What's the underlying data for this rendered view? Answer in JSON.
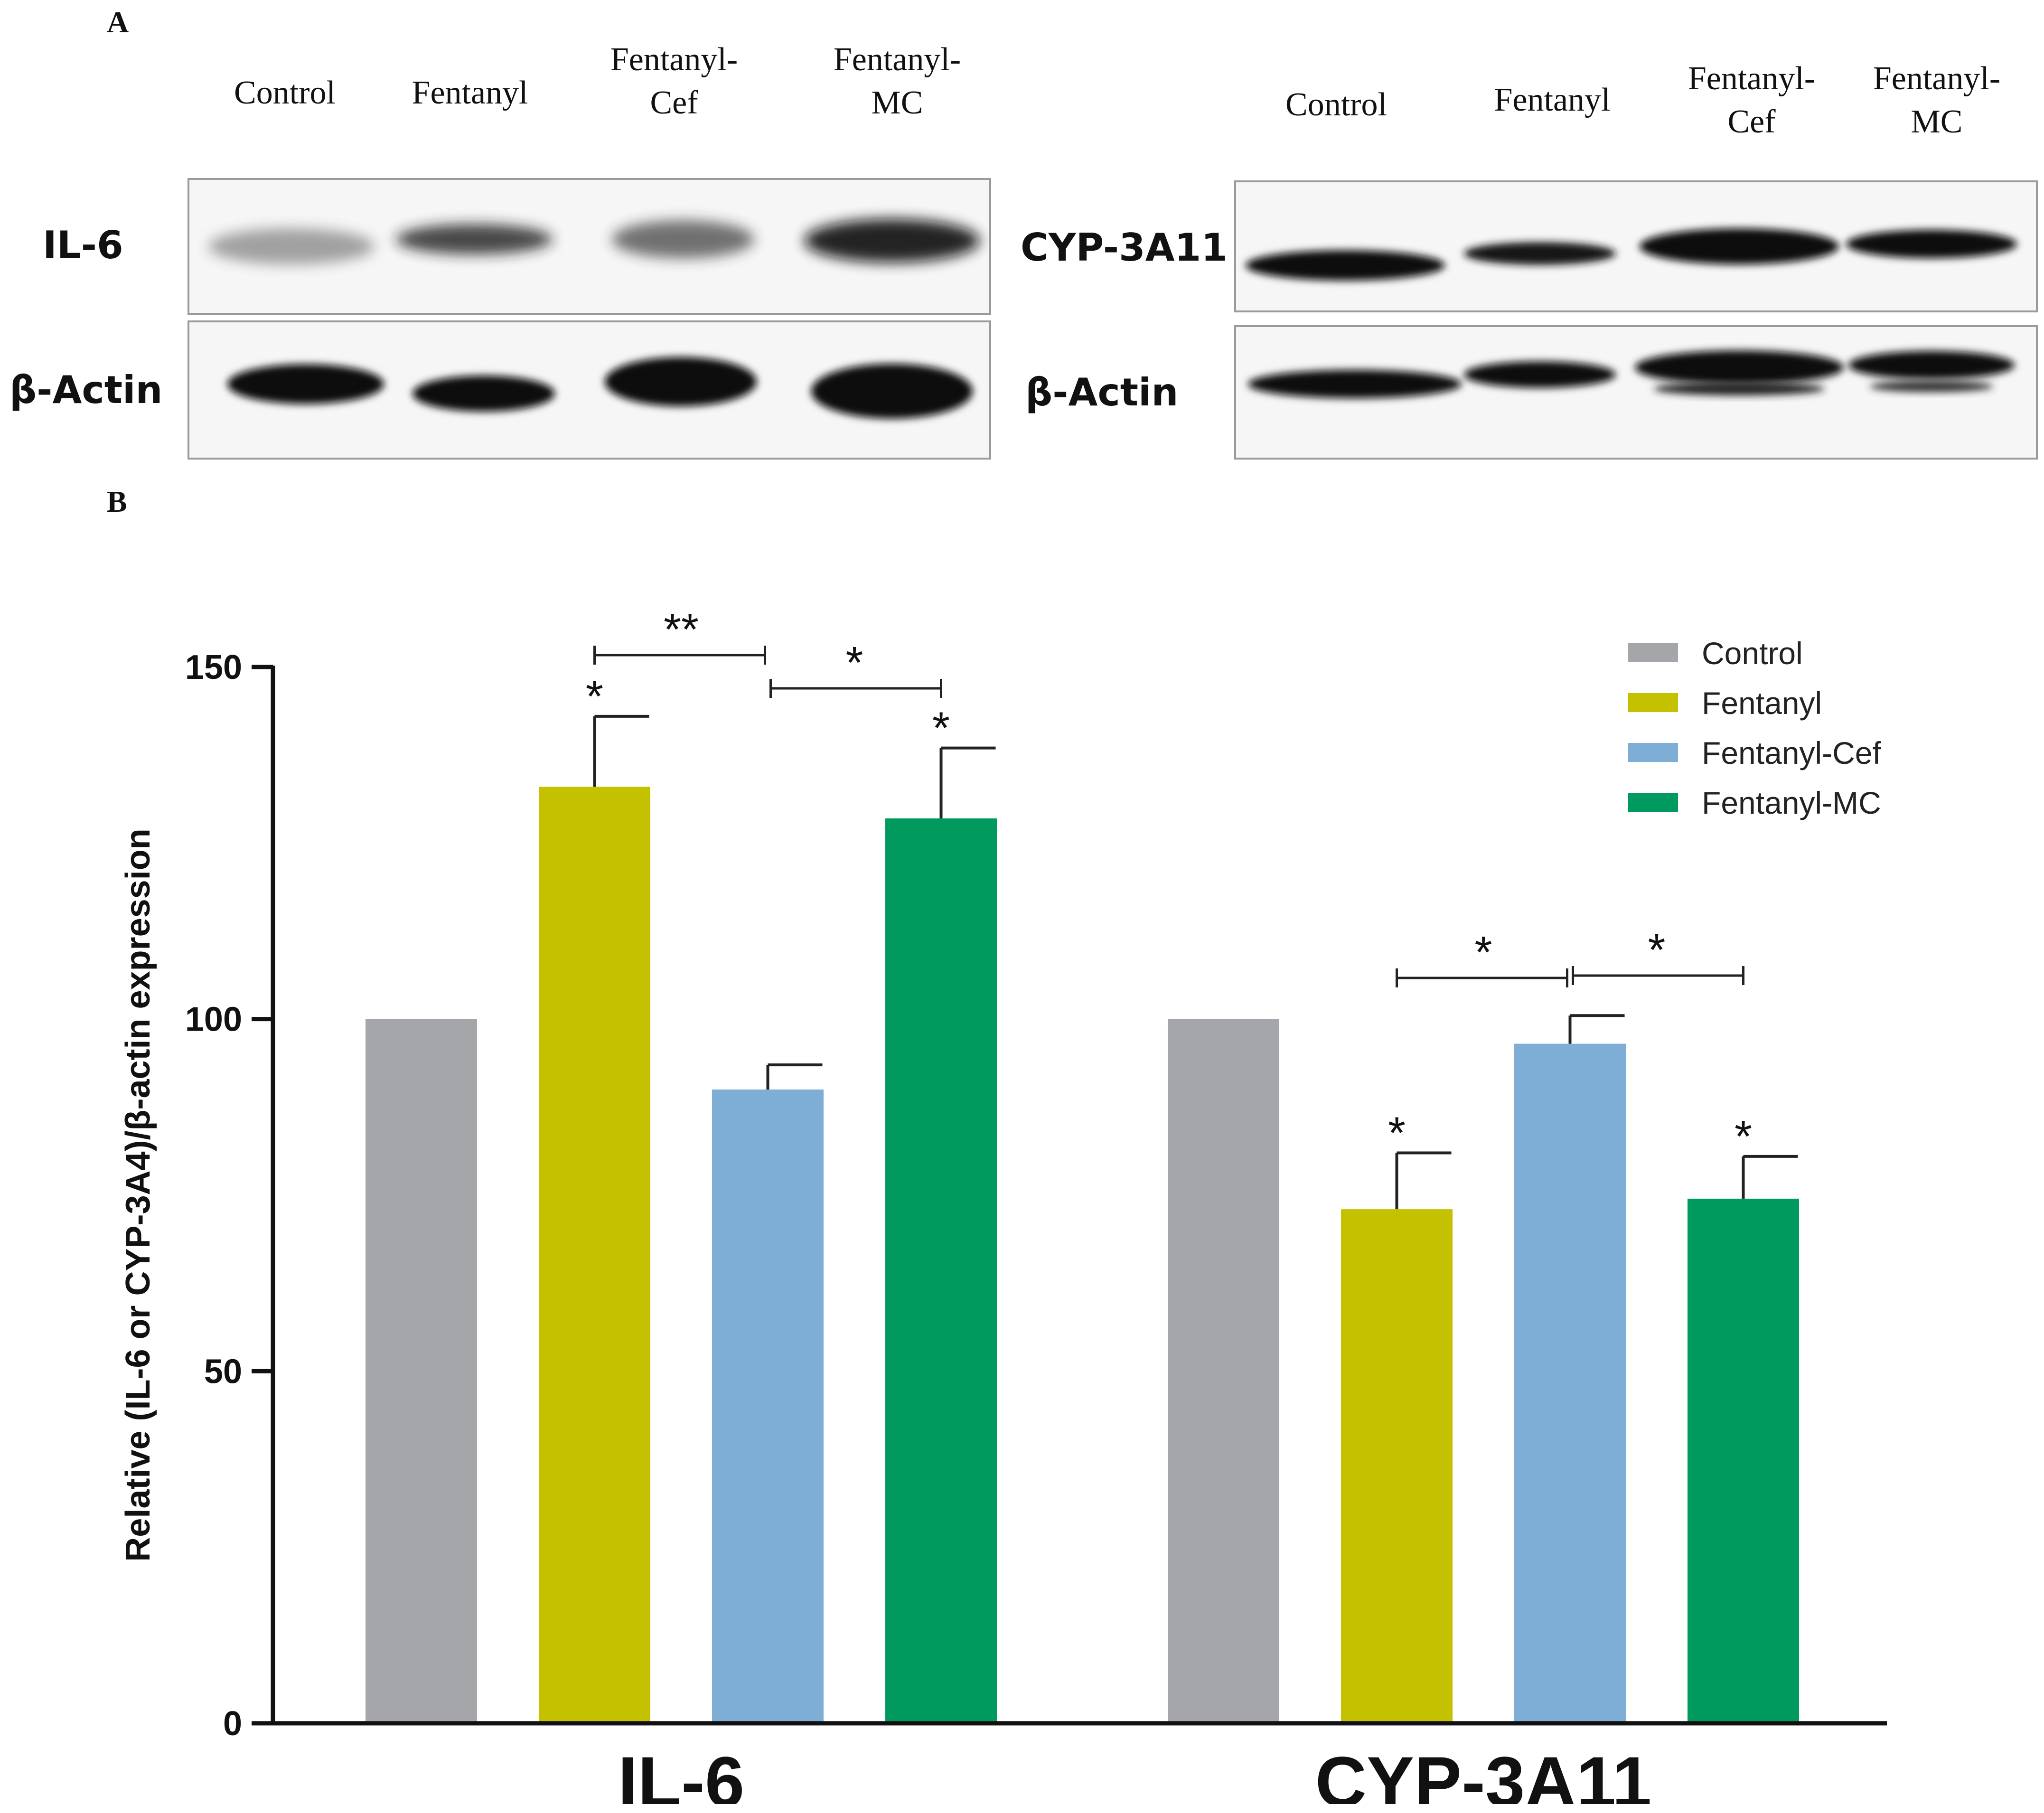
{
  "panel_a_label": "A",
  "panel_b_label": "B",
  "blots": {
    "il6": {
      "lanes": [
        "Control",
        "Fentanyl",
        "Fentanyl-\nCef",
        "Fentanyl-\nMC"
      ],
      "target_label": "IL-6",
      "loading_label": "β-Actin"
    },
    "cyp": {
      "lanes": [
        "Control",
        "Fentanyl",
        "Fentanyl-\nCef",
        "Fentanyl-\nMC"
      ],
      "target_label": "CYP-3A11",
      "loading_label": "β-Actin"
    }
  },
  "chart_data": {
    "type": "bar",
    "ylabel": "Relative (IL-6 or CYP-3A4)/β-actin expression",
    "xlabel": "",
    "ylim": [
      0,
      150
    ],
    "yticks": [
      "0",
      "50",
      "100",
      "150"
    ],
    "categories": [
      "IL-6",
      "CYP-3A11"
    ],
    "series": [
      {
        "name": "Control",
        "color": "#a5a6a9",
        "values": [
          100,
          100
        ],
        "errors": [
          0,
          0
        ]
      },
      {
        "name": "Fentanyl",
        "color": "#c4c200",
        "values": [
          133,
          73
        ],
        "errors": [
          10,
          8
        ]
      },
      {
        "name": "Fentanyl-Cef",
        "color": "#7eaed6",
        "values": [
          90,
          96.5
        ],
        "errors": [
          3.5,
          4
        ]
      },
      {
        "name": "Fentanyl-MC",
        "color": "#009a5e",
        "values": [
          128.5,
          74.5
        ],
        "errors": [
          10,
          6
        ]
      }
    ],
    "significance_marks": [
      {
        "category": "IL-6",
        "series": "Fentanyl",
        "label": "*"
      },
      {
        "category": "IL-6",
        "series": "Fentanyl-MC",
        "label": "*"
      },
      {
        "category": "CYP-3A11",
        "series": "Fentanyl",
        "label": "*"
      },
      {
        "category": "CYP-3A11",
        "series": "Fentanyl-MC",
        "label": "*"
      }
    ],
    "comparisons": [
      {
        "category": "IL-6",
        "from": "Fentanyl",
        "to": "Fentanyl-Cef",
        "label": "**"
      },
      {
        "category": "IL-6",
        "from": "Fentanyl-Cef",
        "to": "Fentanyl-MC",
        "label": "*"
      },
      {
        "category": "CYP-3A11",
        "from": "Fentanyl",
        "to": "Fentanyl-Cef",
        "label": "*"
      },
      {
        "category": "CYP-3A11",
        "from": "Fentanyl-Cef",
        "to": "Fentanyl-MC",
        "label": "*"
      }
    ],
    "legend_position": "top-right"
  }
}
